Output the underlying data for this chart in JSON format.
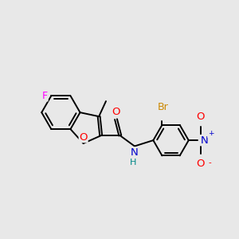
{
  "bg_color": "#e8e8e8",
  "atom_colors": {
    "O": "#ff0000",
    "N": "#0000cc",
    "F": "#ff00ff",
    "Br": "#cc8800",
    "H": "#008888"
  },
  "font_size": 8.5,
  "bond_color": "#000000",
  "bond_width": 1.4
}
